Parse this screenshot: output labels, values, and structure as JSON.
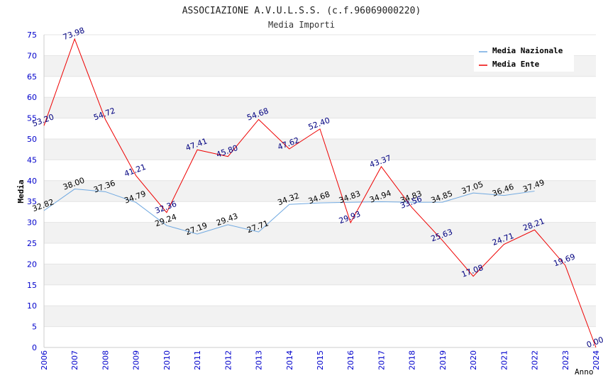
{
  "chart_data": {
    "type": "line",
    "title": "ASSOCIAZIONE A.V.U.L.S.S. (c.f.96069000220)",
    "subtitle": "Media Importi",
    "xlabel": "Anno",
    "ylabel": "Media",
    "ylim": [
      0,
      75
    ],
    "ytick_step": 5,
    "grid": true,
    "legend_position": "top-right",
    "categories": [
      "2006",
      "2007",
      "2008",
      "2009",
      "2010",
      "2011",
      "2012",
      "2013",
      "2014",
      "2015",
      "2016",
      "2017",
      "2018",
      "2019",
      "2020",
      "2021",
      "2022",
      "2023",
      "2024"
    ],
    "series": [
      {
        "name": "Media Nazionale",
        "color": "#6fa8e0",
        "label_color": "#000000",
        "values": [
          32.82,
          38.0,
          37.36,
          34.79,
          29.24,
          27.19,
          29.43,
          27.71,
          34.32,
          34.68,
          34.83,
          34.94,
          34.83,
          34.85,
          37.05,
          36.46,
          37.49,
          null,
          null
        ],
        "labels": [
          "32.82",
          "38.00",
          "37.36",
          "34.79",
          "29.24",
          "27.19",
          "29.43",
          "27.71",
          "34.32",
          "34.68",
          "34.83",
          "34.94",
          "34.83",
          "34.85",
          "37.05",
          "36.46",
          "37.49",
          null,
          null
        ]
      },
      {
        "name": "Media Ente",
        "color": "#ee0000",
        "label_color": "#000080",
        "values": [
          53.2,
          73.98,
          54.72,
          41.21,
          32.36,
          47.41,
          45.8,
          54.68,
          47.62,
          52.4,
          29.93,
          43.37,
          33.56,
          25.63,
          17.08,
          24.71,
          28.21,
          19.69,
          0.0
        ],
        "labels": [
          "53.20",
          "73.98",
          "54.72",
          "41.21",
          "32.36",
          "47.41",
          "45.80",
          "54.68",
          "47.62",
          "52.40",
          "29.93",
          "43.37",
          "33.56",
          "25.63",
          "17.08",
          "24.71",
          "28.21",
          "19.69",
          "0.00"
        ]
      }
    ]
  },
  "colors": {
    "band": "#f2f2f2",
    "tick_label": "#0000cc",
    "axis": "#cccccc"
  }
}
